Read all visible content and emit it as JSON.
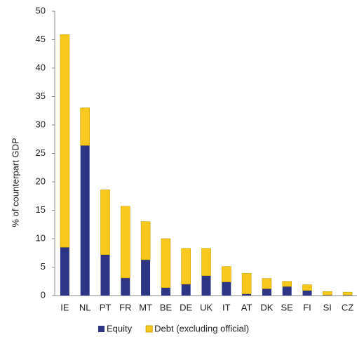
{
  "chart_data": {
    "type": "stacked-bar",
    "y_label": "% of  counterpart GDP",
    "categories": [
      "IE",
      "NL",
      "PT",
      "FR",
      "MT",
      "BE",
      "DE",
      "UK",
      "IT",
      "AT",
      "DK",
      "SE",
      "FI",
      "SI",
      "CZ"
    ],
    "series": [
      {
        "name": "Equity",
        "color": "#2e3585",
        "values": [
          8.5,
          26.4,
          7.2,
          3.1,
          6.3,
          1.4,
          2.0,
          3.5,
          2.4,
          0.3,
          1.2,
          1.6,
          0.9,
          0.1,
          0.1
        ]
      },
      {
        "name": "Debt (excluding official)",
        "color": "#f7c81e",
        "values": [
          37.4,
          6.6,
          11.4,
          12.6,
          6.7,
          8.6,
          6.3,
          4.8,
          2.7,
          3.6,
          1.8,
          0.9,
          1.0,
          0.6,
          0.5
        ]
      }
    ],
    "ylim": [
      0,
      50
    ],
    "yticks": [
      0,
      5,
      10,
      15,
      20,
      25,
      30,
      35,
      40,
      45,
      50
    ],
    "grid": false
  }
}
